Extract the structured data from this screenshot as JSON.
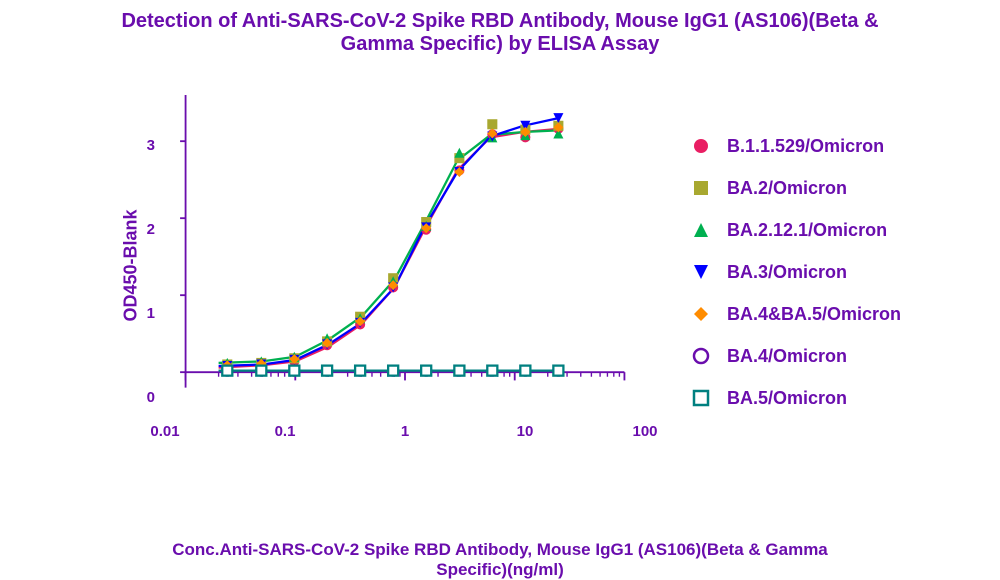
{
  "title_line1": "Detection of Anti-SARS-CoV-2 Spike RBD Antibody, Mouse IgG1 (AS106)(Beta &",
  "title_line2": "Gamma Specific) by ELISA Assay",
  "chart": {
    "type": "line",
    "ylabel": "OD450-Blank",
    "xlabel_line1": "Conc.Anti-SARS-CoV-2 Spike RBD Antibody, Mouse IgG1 (AS106)(Beta & Gamma",
    "xlabel_line2": "Specific)(ng/ml)",
    "title_color": "#6a0dad",
    "axis_color": "#6a0dad",
    "tick_color": "#6a0dad",
    "background_color": "#ffffff",
    "title_fontsize": 20,
    "label_fontsize": 18,
    "tick_fontsize": 15,
    "xscale": "log",
    "xlim": [
      0.01,
      100
    ],
    "ylim": [
      -0.2,
      3.6
    ],
    "xticks": [
      0.01,
      0.1,
      1,
      10,
      100
    ],
    "xtick_labels": [
      "0.01",
      "0.1",
      "1",
      "10",
      "100"
    ],
    "yticks": [
      0,
      1,
      2,
      3
    ],
    "ytick_labels": [
      "0",
      "1",
      "2",
      "3"
    ],
    "xminor": [
      0.02,
      0.03,
      0.04,
      0.05,
      0.06,
      0.07,
      0.08,
      0.09,
      0.2,
      0.3,
      0.4,
      0.5,
      0.6,
      0.7,
      0.8,
      0.9,
      2,
      3,
      4,
      5,
      6,
      7,
      8,
      9,
      20,
      30,
      40,
      50,
      60,
      70,
      80,
      90
    ],
    "series": [
      {
        "name": "B.1.1.529/Omicron",
        "color": "#e91e63",
        "marker": "circle_filled",
        "x": [
          0.024,
          0.049,
          0.098,
          0.195,
          0.39,
          0.78,
          1.56,
          3.13,
          6.25,
          12.5,
          25
        ],
        "y": [
          0.06,
          0.09,
          0.14,
          0.35,
          0.62,
          1.1,
          1.85,
          2.62,
          3.09,
          3.05,
          3.16
        ]
      },
      {
        "name": "BA.2/Omicron",
        "color": "#a8a830",
        "marker": "square_filled",
        "x": [
          0.024,
          0.049,
          0.098,
          0.195,
          0.39,
          0.78,
          1.56,
          3.13,
          6.25,
          12.5,
          25
        ],
        "y": [
          0.1,
          0.12,
          0.18,
          0.4,
          0.72,
          1.22,
          1.95,
          2.78,
          3.22,
          3.15,
          3.2
        ]
      },
      {
        "name": "BA.2.12.1/Omicron",
        "color": "#00b050",
        "marker": "triangle_up_filled",
        "x": [
          0.024,
          0.049,
          0.098,
          0.195,
          0.39,
          0.78,
          1.56,
          3.13,
          6.25,
          12.5,
          25
        ],
        "y": [
          0.12,
          0.14,
          0.2,
          0.44,
          0.7,
          1.18,
          1.9,
          2.85,
          3.05,
          3.08,
          3.1
        ]
      },
      {
        "name": "BA.3/Omicron",
        "color": "#0000ff",
        "marker": "triangle_down_filled",
        "x": [
          0.024,
          0.049,
          0.098,
          0.195,
          0.39,
          0.78,
          1.56,
          3.13,
          6.25,
          12.5,
          25
        ],
        "y": [
          0.08,
          0.1,
          0.16,
          0.36,
          0.64,
          1.1,
          1.88,
          2.6,
          3.06,
          3.2,
          3.3
        ]
      },
      {
        "name": "BA.4&BA.5/Omicron",
        "color": "#ff8c00",
        "marker": "diamond_filled",
        "x": [
          0.024,
          0.049,
          0.098,
          0.195,
          0.39,
          0.78,
          1.56,
          3.13,
          6.25,
          12.5,
          25
        ],
        "y": [
          0.09,
          0.11,
          0.17,
          0.38,
          0.66,
          1.13,
          1.87,
          2.6,
          3.1,
          3.12,
          3.18
        ]
      },
      {
        "name": "BA.4/Omicron",
        "color": "#6a0dad",
        "marker": "circle_open",
        "x": [
          0.024,
          0.049,
          0.098,
          0.195,
          0.39,
          0.78,
          1.56,
          3.13,
          6.25,
          12.5,
          25
        ],
        "y": [
          0.02,
          0.02,
          0.02,
          0.02,
          0.02,
          0.02,
          0.02,
          0.02,
          0.02,
          0.02,
          0.02
        ]
      },
      {
        "name": "BA.5/Omicron",
        "color": "#008080",
        "marker": "square_open",
        "x": [
          0.024,
          0.049,
          0.098,
          0.195,
          0.39,
          0.78,
          1.56,
          3.13,
          6.25,
          12.5,
          25
        ],
        "y": [
          0.02,
          0.02,
          0.02,
          0.02,
          0.02,
          0.02,
          0.02,
          0.02,
          0.02,
          0.02,
          0.02
        ]
      }
    ],
    "curves": [
      {
        "color": "#e91e63",
        "width": 2.5,
        "x": [
          0.02,
          0.05,
          0.1,
          0.2,
          0.4,
          0.8,
          1.5,
          3,
          6,
          12,
          25
        ],
        "y": [
          0.06,
          0.09,
          0.14,
          0.33,
          0.62,
          1.1,
          1.85,
          2.62,
          3.05,
          3.12,
          3.16
        ]
      },
      {
        "color": "#00b050",
        "width": 2.5,
        "x": [
          0.02,
          0.05,
          0.1,
          0.2,
          0.4,
          0.8,
          1.5,
          3,
          6,
          12,
          25
        ],
        "y": [
          0.12,
          0.14,
          0.2,
          0.42,
          0.72,
          1.2,
          1.92,
          2.75,
          3.08,
          3.12,
          3.14
        ]
      },
      {
        "color": "#0000ff",
        "width": 2.5,
        "x": [
          0.02,
          0.05,
          0.1,
          0.2,
          0.4,
          0.8,
          1.5,
          3,
          6,
          12,
          25
        ],
        "y": [
          0.08,
          0.1,
          0.16,
          0.36,
          0.64,
          1.1,
          1.88,
          2.6,
          3.06,
          3.2,
          3.3
        ]
      },
      {
        "color": "#6a0dad",
        "width": 2.5,
        "x": [
          0.02,
          25
        ],
        "y": [
          0.02,
          0.02
        ]
      },
      {
        "color": "#008080",
        "width": 2.5,
        "x": [
          0.02,
          25
        ],
        "y": [
          0.02,
          0.02
        ]
      }
    ]
  },
  "legend_items": [
    {
      "label": "B.1.1.529/Omicron",
      "color": "#e91e63",
      "marker": "circle_filled"
    },
    {
      "label": "BA.2/Omicron",
      "color": "#a8a830",
      "marker": "square_filled"
    },
    {
      "label": "BA.2.12.1/Omicron",
      "color": "#00b050",
      "marker": "triangle_up_filled"
    },
    {
      "label": "BA.3/Omicron",
      "color": "#0000ff",
      "marker": "triangle_down_filled"
    },
    {
      "label": "BA.4&BA.5/Omicron",
      "color": "#ff8c00",
      "marker": "diamond_filled"
    },
    {
      "label": "BA.4/Omicron",
      "color": "#6a0dad",
      "marker": "circle_open"
    },
    {
      "label": "BA.5/Omicron",
      "color": "#008080",
      "marker": "square_open"
    }
  ]
}
